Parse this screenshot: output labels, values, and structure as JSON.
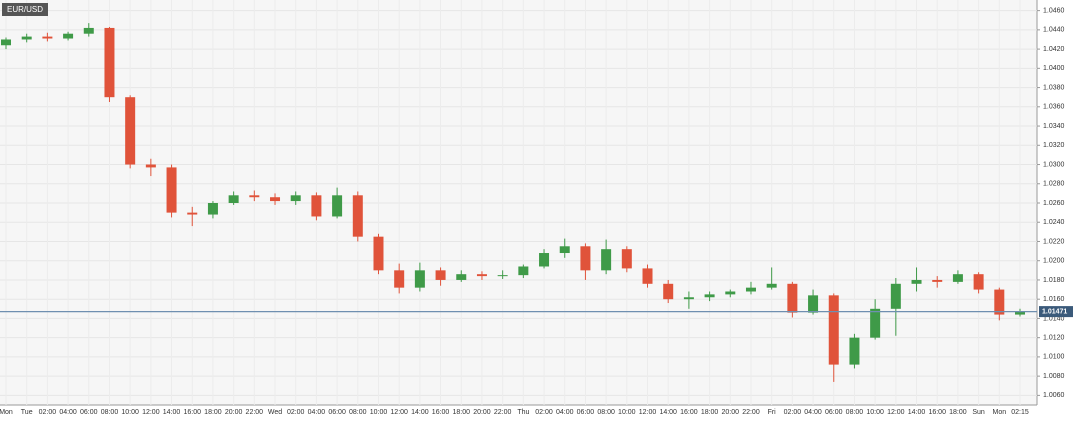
{
  "chart_data": {
    "type": "candlestick",
    "title": "EUR/USD",
    "categories": [
      "Mon",
      "Tue",
      "02:00",
      "04:00",
      "06:00",
      "08:00",
      "10:00",
      "12:00",
      "14:00",
      "16:00",
      "18:00",
      "20:00",
      "22:00",
      "Wed",
      "02:00",
      "04:00",
      "06:00",
      "08:00",
      "10:00",
      "12:00",
      "14:00",
      "16:00",
      "18:00",
      "20:00",
      "22:00",
      "Thu",
      "02:00",
      "04:00",
      "06:00",
      "08:00",
      "10:00",
      "12:00",
      "14:00",
      "16:00",
      "18:00",
      "20:00",
      "22:00",
      "Fri",
      "02:00",
      "04:00",
      "06:00",
      "08:00",
      "10:00",
      "12:00",
      "14:00",
      "16:00",
      "18:00",
      "Sun",
      "Mon",
      "02:15"
    ],
    "open": [
      1.0424,
      1.043,
      1.0433,
      1.0431,
      1.0436,
      1.0442,
      1.037,
      1.03,
      1.0297,
      1.025,
      1.0248,
      1.026,
      1.0268,
      1.0266,
      1.0262,
      1.0268,
      1.0246,
      1.0268,
      1.0225,
      1.019,
      1.0172,
      1.019,
      1.018,
      1.0186,
      1.0184,
      1.0185,
      1.0194,
      1.0208,
      1.0215,
      1.019,
      1.0212,
      1.0192,
      1.0176,
      1.016,
      1.0162,
      1.0165,
      1.0168,
      1.0172,
      1.0176,
      1.0146,
      1.0164,
      1.0092,
      1.012,
      1.015,
      1.0176,
      1.018,
      1.0178,
      1.0186,
      1.017,
      1.0144
    ],
    "high": [
      1.0432,
      1.0436,
      1.0437,
      1.0438,
      1.0447,
      1.0443,
      1.0372,
      1.0306,
      1.03,
      1.0256,
      1.0262,
      1.0272,
      1.0273,
      1.027,
      1.0272,
      1.0271,
      1.0276,
      1.0272,
      1.0228,
      1.0197,
      1.0198,
      1.0193,
      1.019,
      1.0189,
      1.019,
      1.0196,
      1.0212,
      1.0223,
      1.0218,
      1.0222,
      1.0215,
      1.0196,
      1.018,
      1.0168,
      1.0168,
      1.017,
      1.0178,
      1.0193,
      1.0178,
      1.017,
      1.0166,
      1.0124,
      1.016,
      1.0182,
      1.0193,
      1.0184,
      1.019,
      1.0188,
      1.0172,
      1.015
    ],
    "low": [
      1.042,
      1.0427,
      1.0428,
      1.0429,
      1.0433,
      1.0365,
      1.0296,
      1.0288,
      1.0245,
      1.0236,
      1.0244,
      1.0258,
      1.0262,
      1.0258,
      1.0258,
      1.0242,
      1.0244,
      1.022,
      1.0186,
      1.0166,
      1.0168,
      1.0174,
      1.0178,
      1.018,
      1.0181,
      1.0182,
      1.0192,
      1.0203,
      1.018,
      1.0186,
      1.0188,
      1.0172,
      1.0156,
      1.015,
      1.0158,
      1.0162,
      1.0165,
      1.017,
      1.0141,
      1.0144,
      1.0074,
      1.0088,
      1.0118,
      1.0122,
      1.0168,
      1.0172,
      1.0176,
      1.0166,
      1.0138,
      1.0142
    ],
    "close": [
      1.043,
      1.0433,
      1.0431,
      1.0436,
      1.0442,
      1.037,
      1.03,
      1.0297,
      1.025,
      1.0248,
      1.026,
      1.0268,
      1.0266,
      1.0262,
      1.0268,
      1.0246,
      1.0268,
      1.0225,
      1.019,
      1.0172,
      1.019,
      1.018,
      1.0186,
      1.0184,
      1.0185,
      1.0194,
      1.0208,
      1.0215,
      1.019,
      1.0212,
      1.0192,
      1.0176,
      1.016,
      1.0162,
      1.0165,
      1.0168,
      1.0172,
      1.0176,
      1.0146,
      1.0164,
      1.0092,
      1.012,
      1.015,
      1.0176,
      1.018,
      1.0178,
      1.0186,
      1.017,
      1.0144,
      1.0147
    ],
    "up_color": "#3f9a48",
    "down_color": "#e0533a",
    "last_price": 1.01471,
    "last_price_color": "#6f8fb0",
    "ylim": [
      1.005,
      1.047
    ],
    "yticks": [
      {
        "value": 1.046,
        "label": "1.0460"
      },
      {
        "value": 1.044,
        "label": "1.0440"
      },
      {
        "value": 1.042,
        "label": "1.0420"
      },
      {
        "value": 1.04,
        "label": "1.0400"
      },
      {
        "value": 1.038,
        "label": "1.0380"
      },
      {
        "value": 1.036,
        "label": "1.0360"
      },
      {
        "value": 1.034,
        "label": "1.0340"
      },
      {
        "value": 1.032,
        "label": "1.0320"
      },
      {
        "value": 1.03,
        "label": "1.0300"
      },
      {
        "value": 1.028,
        "label": "1.0280"
      },
      {
        "value": 1.026,
        "label": "1.0260"
      },
      {
        "value": 1.024,
        "label": "1.0240"
      },
      {
        "value": 1.022,
        "label": "1.0220"
      },
      {
        "value": 1.02,
        "label": "1.0200"
      },
      {
        "value": 1.018,
        "label": "1.0180"
      },
      {
        "value": 1.016,
        "label": "1.0160"
      },
      {
        "value": 1.014,
        "label": "1.0140"
      },
      {
        "value": 1.012,
        "label": "1.0120"
      },
      {
        "value": 1.01,
        "label": "1.0100"
      },
      {
        "value": 1.008,
        "label": "1.0080"
      },
      {
        "value": 1.006,
        "label": "1.0060"
      }
    ],
    "grid": true
  }
}
